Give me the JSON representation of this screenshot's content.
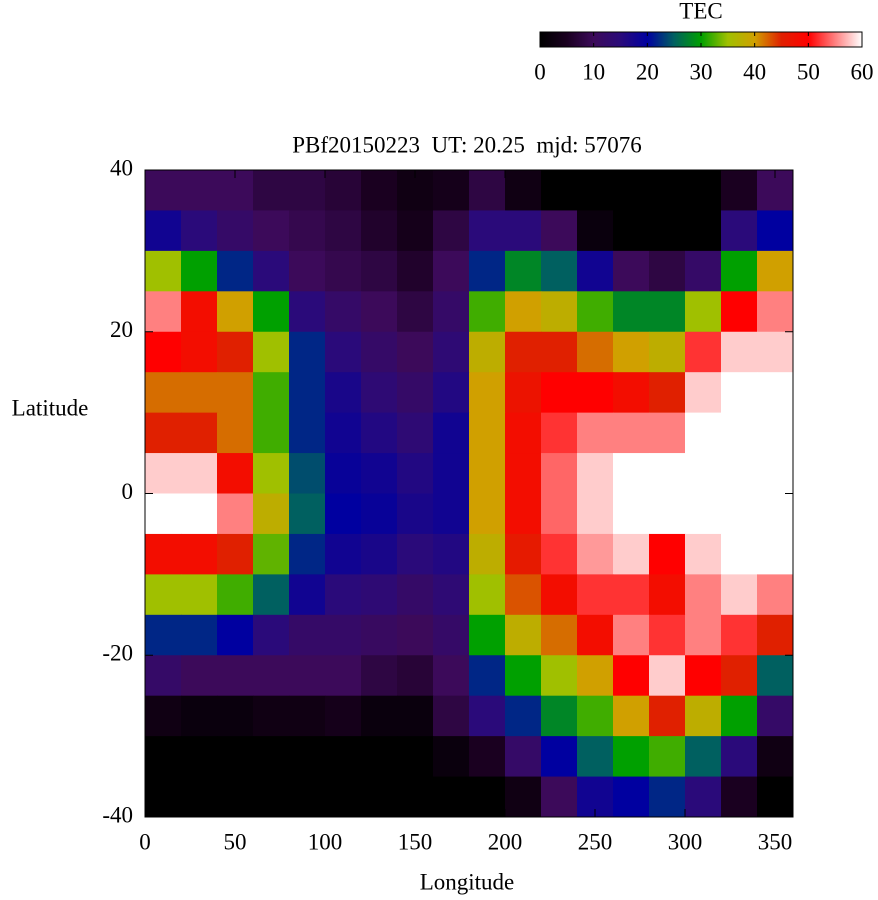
{
  "chart_data": {
    "type": "heatmap",
    "title": "PBf20150223  UT: 20.25  mjd: 57076",
    "xlabel": "Longitude",
    "ylabel": "Latitude",
    "colorbar_label": "TEC",
    "x": [
      10,
      30,
      50,
      70,
      90,
      110,
      130,
      150,
      170,
      190,
      210,
      230,
      250,
      270,
      290,
      310,
      330,
      350
    ],
    "y": [
      37.5,
      32.5,
      27.5,
      22.5,
      17.5,
      12.5,
      7.5,
      2.5,
      -2.5,
      -7.5,
      -12.5,
      -17.5,
      -22.5,
      -27.5,
      -32.5,
      -37.5
    ],
    "z": [
      [
        10,
        10,
        10,
        8,
        8,
        7,
        5,
        3,
        4,
        8,
        3,
        0,
        0,
        0,
        0,
        0,
        5,
        10
      ],
      [
        18,
        15,
        12,
        10,
        9,
        8,
        6,
        4,
        8,
        15,
        15,
        10,
        2,
        0,
        0,
        0,
        15,
        20
      ],
      [
        35,
        30,
        22,
        15,
        10,
        9,
        8,
        6,
        10,
        22,
        28,
        25,
        18,
        10,
        8,
        12,
        30,
        40
      ],
      [
        55,
        48,
        40,
        30,
        15,
        12,
        10,
        8,
        12,
        32,
        40,
        38,
        32,
        28,
        28,
        35,
        50,
        55
      ],
      [
        50,
        48,
        45,
        35,
        22,
        15,
        12,
        10,
        14,
        38,
        45,
        45,
        42,
        40,
        38,
        52,
        58,
        58
      ],
      [
        42,
        42,
        42,
        32,
        22,
        17,
        14,
        12,
        16,
        40,
        47,
        50,
        50,
        48,
        45,
        58,
        60,
        60
      ],
      [
        45,
        45,
        42,
        32,
        22,
        18,
        16,
        14,
        18,
        40,
        48,
        52,
        55,
        55,
        55,
        60,
        60,
        60
      ],
      [
        58,
        58,
        48,
        35,
        24,
        19,
        18,
        16,
        18,
        40,
        48,
        54,
        58,
        60,
        60,
        60,
        60,
        60
      ],
      [
        60,
        60,
        55,
        38,
        25,
        20,
        19,
        17,
        18,
        40,
        48,
        54,
        58,
        60,
        60,
        60,
        60,
        60
      ],
      [
        48,
        48,
        45,
        33,
        22,
        18,
        17,
        15,
        16,
        38,
        46,
        52,
        56,
        58,
        50,
        58,
        60,
        60
      ],
      [
        35,
        35,
        32,
        25,
        18,
        15,
        14,
        12,
        14,
        35,
        43,
        48,
        52,
        52,
        48,
        55,
        58,
        55
      ],
      [
        22,
        22,
        20,
        15,
        12,
        12,
        11,
        10,
        12,
        30,
        38,
        42,
        48,
        55,
        52,
        55,
        52,
        45
      ],
      [
        12,
        10,
        10,
        10,
        10,
        10,
        8,
        7,
        10,
        22,
        30,
        35,
        40,
        50,
        58,
        50,
        45,
        25
      ],
      [
        3,
        2,
        2,
        3,
        3,
        4,
        2,
        2,
        8,
        15,
        22,
        28,
        32,
        40,
        45,
        38,
        30,
        12
      ],
      [
        0,
        0,
        0,
        0,
        0,
        0,
        0,
        0,
        2,
        5,
        12,
        20,
        25,
        30,
        32,
        25,
        15,
        3
      ],
      [
        0,
        0,
        0,
        0,
        0,
        0,
        0,
        0,
        0,
        0,
        3,
        10,
        18,
        20,
        22,
        15,
        5,
        0
      ]
    ],
    "xlim": [
      0,
      360
    ],
    "ylim": [
      -40,
      40
    ],
    "xticks": [
      0,
      50,
      100,
      150,
      200,
      250,
      300,
      350
    ],
    "yticks": [
      40,
      20,
      0,
      -20,
      -40
    ],
    "zlim": [
      0,
      60
    ],
    "zticks": [
      0,
      10,
      20,
      30,
      40,
      50,
      60
    ],
    "palette": [
      "#000000",
      "#1a0020",
      "#3c0a5a",
      "#2a0a7a",
      "#0000a0",
      "#006060",
      "#00a000",
      "#a0c000",
      "#d0a000",
      "#e02000",
      "#ff0000",
      "#ff8080",
      "#ffffff"
    ]
  }
}
